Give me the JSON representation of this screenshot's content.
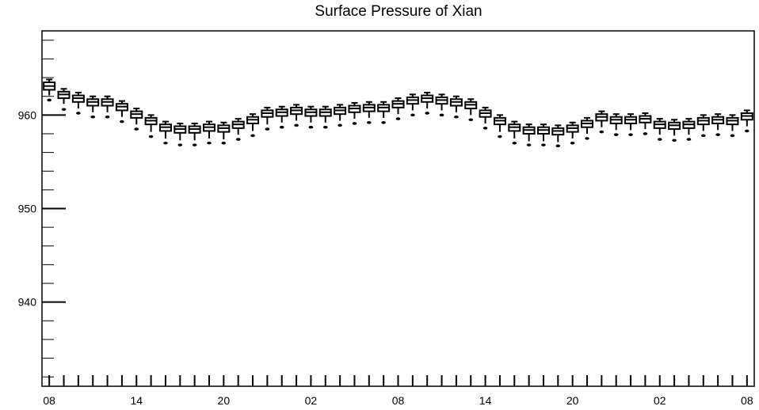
{
  "chart_data": {
    "type": "boxplot",
    "title": "Surface Pressure of Xian",
    "xlabel": "",
    "ylabel": "",
    "ylim": [
      931,
      969
    ],
    "y_major_ticks": [
      940,
      950,
      960
    ],
    "x_tick_labels": [
      "08",
      "14",
      "20",
      "02",
      "08",
      "14",
      "20",
      "02",
      "08"
    ],
    "x_tick_label_positions": [
      0,
      6,
      12,
      18,
      24,
      30,
      36,
      42,
      48
    ],
    "x_range": [
      -0.5,
      48.5
    ],
    "boxes": [
      {
        "x": 0,
        "median": 963.1,
        "q1": 962.7,
        "q3": 963.5,
        "whislo": 962.1,
        "whishi": 963.8,
        "outlier": 961.6
      },
      {
        "x": 1,
        "median": 962.2,
        "q1": 961.8,
        "q3": 962.5,
        "whislo": 961.2,
        "whishi": 962.8,
        "outlier": 960.6
      },
      {
        "x": 2,
        "median": 961.8,
        "q1": 961.4,
        "q3": 962.1,
        "whislo": 960.7,
        "whishi": 962.4,
        "outlier": 960.2
      },
      {
        "x": 3,
        "median": 961.4,
        "q1": 961.0,
        "q3": 961.7,
        "whislo": 960.3,
        "whishi": 962.0,
        "outlier": 959.8
      },
      {
        "x": 4,
        "median": 961.4,
        "q1": 961.0,
        "q3": 961.7,
        "whislo": 960.3,
        "whishi": 962.0,
        "outlier": 959.8
      },
      {
        "x": 5,
        "median": 960.9,
        "q1": 960.5,
        "q3": 961.2,
        "whislo": 959.8,
        "whishi": 961.5,
        "outlier": 959.3
      },
      {
        "x": 6,
        "median": 960.1,
        "q1": 959.7,
        "q3": 960.4,
        "whislo": 959.0,
        "whishi": 960.7,
        "outlier": 958.5
      },
      {
        "x": 7,
        "median": 959.4,
        "q1": 959.0,
        "q3": 959.7,
        "whislo": 958.2,
        "whishi": 960.0,
        "outlier": 957.7
      },
      {
        "x": 8,
        "median": 958.7,
        "q1": 958.3,
        "q3": 959.0,
        "whislo": 957.5,
        "whishi": 959.3,
        "outlier": 957.0
      },
      {
        "x": 9,
        "median": 958.5,
        "q1": 958.1,
        "q3": 958.8,
        "whislo": 957.3,
        "whishi": 959.1,
        "outlier": 956.8
      },
      {
        "x": 10,
        "median": 958.5,
        "q1": 958.1,
        "q3": 958.8,
        "whislo": 957.3,
        "whishi": 959.1,
        "outlier": 956.8
      },
      {
        "x": 11,
        "median": 958.7,
        "q1": 958.3,
        "q3": 959.0,
        "whislo": 957.5,
        "whishi": 959.3,
        "outlier": 957.0
      },
      {
        "x": 12,
        "median": 958.6,
        "q1": 958.2,
        "q3": 958.9,
        "whislo": 957.4,
        "whishi": 959.2,
        "outlier": 957.0
      },
      {
        "x": 13,
        "median": 959.0,
        "q1": 958.6,
        "q3": 959.3,
        "whislo": 957.9,
        "whishi": 959.6,
        "outlier": 957.4
      },
      {
        "x": 14,
        "median": 959.5,
        "q1": 959.1,
        "q3": 959.8,
        "whislo": 958.3,
        "whishi": 960.1,
        "outlier": 957.8
      },
      {
        "x": 15,
        "median": 960.2,
        "q1": 959.8,
        "q3": 960.5,
        "whislo": 959.0,
        "whishi": 960.8,
        "outlier": 958.5
      },
      {
        "x": 16,
        "median": 960.3,
        "q1": 959.9,
        "q3": 960.6,
        "whislo": 959.2,
        "whishi": 960.9,
        "outlier": 958.7
      },
      {
        "x": 17,
        "median": 960.5,
        "q1": 960.1,
        "q3": 960.8,
        "whislo": 959.4,
        "whishi": 961.1,
        "outlier": 958.9
      },
      {
        "x": 18,
        "median": 960.3,
        "q1": 959.9,
        "q3": 960.6,
        "whislo": 959.2,
        "whishi": 960.9,
        "outlier": 958.7
      },
      {
        "x": 19,
        "median": 960.3,
        "q1": 959.9,
        "q3": 960.6,
        "whislo": 959.2,
        "whishi": 960.9,
        "outlier": 958.7
      },
      {
        "x": 20,
        "median": 960.5,
        "q1": 960.1,
        "q3": 960.8,
        "whislo": 959.4,
        "whishi": 961.1,
        "outlier": 958.9
      },
      {
        "x": 21,
        "median": 960.7,
        "q1": 960.3,
        "q3": 961.0,
        "whislo": 959.6,
        "whishi": 961.3,
        "outlier": 959.1
      },
      {
        "x": 22,
        "median": 960.8,
        "q1": 960.4,
        "q3": 961.1,
        "whislo": 959.7,
        "whishi": 961.4,
        "outlier": 959.2
      },
      {
        "x": 23,
        "median": 960.8,
        "q1": 960.4,
        "q3": 961.1,
        "whislo": 959.7,
        "whishi": 961.4,
        "outlier": 959.2
      },
      {
        "x": 24,
        "median": 961.2,
        "q1": 960.8,
        "q3": 961.5,
        "whislo": 960.1,
        "whishi": 961.8,
        "outlier": 959.6
      },
      {
        "x": 25,
        "median": 961.6,
        "q1": 961.2,
        "q3": 961.9,
        "whislo": 960.5,
        "whishi": 962.2,
        "outlier": 960.0
      },
      {
        "x": 26,
        "median": 961.8,
        "q1": 961.4,
        "q3": 962.1,
        "whislo": 960.7,
        "whishi": 962.4,
        "outlier": 960.2
      },
      {
        "x": 27,
        "median": 961.6,
        "q1": 961.2,
        "q3": 961.9,
        "whislo": 960.5,
        "whishi": 962.2,
        "outlier": 960.0
      },
      {
        "x": 28,
        "median": 961.4,
        "q1": 961.0,
        "q3": 961.7,
        "whislo": 960.3,
        "whishi": 962.0,
        "outlier": 959.8
      },
      {
        "x": 29,
        "median": 961.1,
        "q1": 960.7,
        "q3": 961.4,
        "whislo": 960.0,
        "whishi": 961.7,
        "outlier": 959.5
      },
      {
        "x": 30,
        "median": 960.2,
        "q1": 959.8,
        "q3": 960.5,
        "whislo": 959.1,
        "whishi": 960.8,
        "outlier": 958.6
      },
      {
        "x": 31,
        "median": 959.4,
        "q1": 959.0,
        "q3": 959.7,
        "whislo": 958.2,
        "whishi": 960.0,
        "outlier": 957.7
      },
      {
        "x": 32,
        "median": 958.7,
        "q1": 958.3,
        "q3": 959.0,
        "whislo": 957.5,
        "whishi": 959.3,
        "outlier": 957.0
      },
      {
        "x": 33,
        "median": 958.4,
        "q1": 958.0,
        "q3": 958.7,
        "whislo": 957.2,
        "whishi": 959.0,
        "outlier": 956.8
      },
      {
        "x": 34,
        "median": 958.4,
        "q1": 958.0,
        "q3": 958.7,
        "whislo": 957.2,
        "whishi": 959.0,
        "outlier": 956.8
      },
      {
        "x": 35,
        "median": 958.3,
        "q1": 957.9,
        "q3": 958.6,
        "whislo": 957.1,
        "whishi": 958.9,
        "outlier": 956.7
      },
      {
        "x": 36,
        "median": 958.6,
        "q1": 958.2,
        "q3": 958.9,
        "whislo": 957.5,
        "whishi": 959.2,
        "outlier": 957.0
      },
      {
        "x": 37,
        "median": 959.1,
        "q1": 958.7,
        "q3": 959.4,
        "whislo": 958.0,
        "whishi": 959.7,
        "outlier": 957.5
      },
      {
        "x": 38,
        "median": 959.8,
        "q1": 959.4,
        "q3": 960.1,
        "whislo": 958.7,
        "whishi": 960.4,
        "outlier": 958.2
      },
      {
        "x": 39,
        "median": 959.5,
        "q1": 959.1,
        "q3": 959.8,
        "whislo": 958.4,
        "whishi": 960.1,
        "outlier": 957.9
      },
      {
        "x": 40,
        "median": 959.5,
        "q1": 959.1,
        "q3": 959.8,
        "whislo": 958.4,
        "whishi": 960.1,
        "outlier": 957.9
      },
      {
        "x": 41,
        "median": 959.6,
        "q1": 959.2,
        "q3": 959.9,
        "whislo": 958.5,
        "whishi": 960.2,
        "outlier": 958.0
      },
      {
        "x": 42,
        "median": 959.0,
        "q1": 958.6,
        "q3": 959.3,
        "whislo": 957.9,
        "whishi": 959.6,
        "outlier": 957.4
      },
      {
        "x": 43,
        "median": 958.9,
        "q1": 958.5,
        "q3": 959.2,
        "whislo": 957.8,
        "whishi": 959.5,
        "outlier": 957.3
      },
      {
        "x": 44,
        "median": 959.0,
        "q1": 958.6,
        "q3": 959.3,
        "whislo": 957.9,
        "whishi": 959.6,
        "outlier": 957.4
      },
      {
        "x": 45,
        "median": 959.4,
        "q1": 959.0,
        "q3": 959.7,
        "whislo": 958.3,
        "whishi": 960.0,
        "outlier": 957.8
      },
      {
        "x": 46,
        "median": 959.5,
        "q1": 959.1,
        "q3": 959.8,
        "whislo": 958.4,
        "whishi": 960.1,
        "outlier": 957.9
      },
      {
        "x": 47,
        "median": 959.4,
        "q1": 959.0,
        "q3": 959.7,
        "whislo": 958.3,
        "whishi": 960.0,
        "outlier": 957.8
      },
      {
        "x": 48,
        "median": 959.9,
        "q1": 959.5,
        "q3": 960.2,
        "whislo": 958.8,
        "whishi": 960.5,
        "outlier": 958.3
      }
    ],
    "grid": false,
    "legend": "none",
    "color": "#000000"
  }
}
